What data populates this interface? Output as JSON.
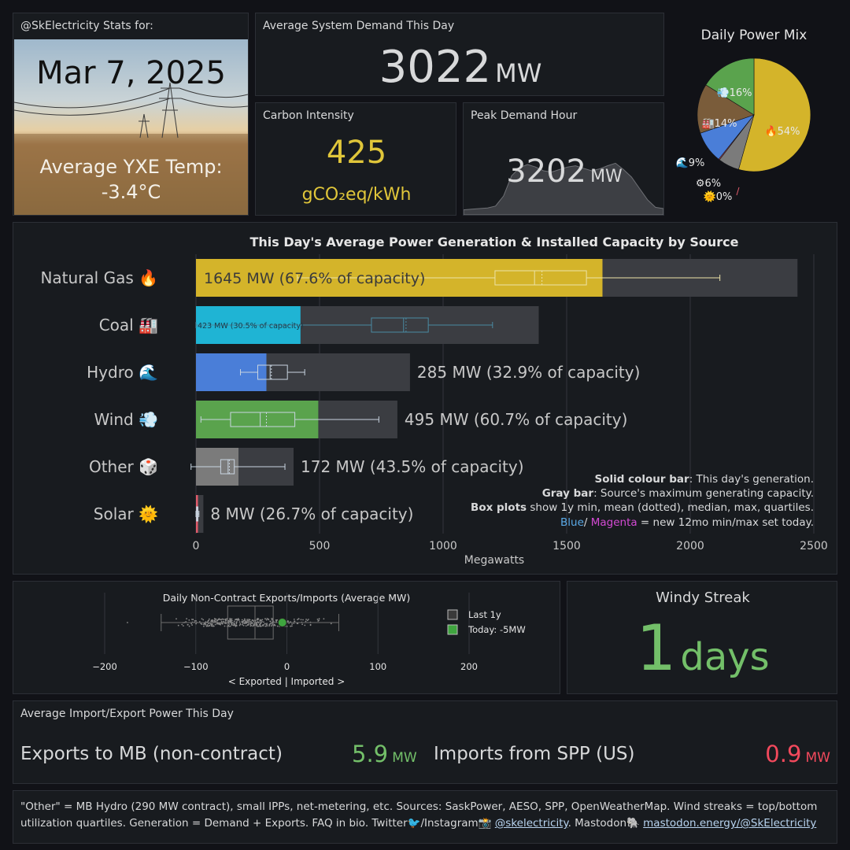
{
  "stats_panel": {
    "title": "@SkElectricity Stats for:",
    "date": "Mar 7, 2025",
    "temp_label": "Average YXE Temp:",
    "temp_value": "-3.4°C"
  },
  "demand_panel": {
    "title": "Average System Demand This Day",
    "value": "3022",
    "unit": "MW"
  },
  "carbon_panel": {
    "title": "Carbon Intensity",
    "value": "425",
    "unit": "gCO₂eq/kWh"
  },
  "peak_panel": {
    "title": "Peak Demand Hour",
    "value": "3202",
    "unit": "MW"
  },
  "windy_panel": {
    "title": "Windy Streak",
    "value": "1",
    "unit": "days"
  },
  "importexport_panel": {
    "title": "Average Import/Export Power This Day",
    "export_label": "Exports to MB (non-contract)",
    "export_value": "5.9",
    "export_unit": "MW",
    "import_label": "Imports from SPP (US)",
    "import_value": "0.9",
    "import_unit": "MW"
  },
  "footer": {
    "text1": "\"Other\" = MB Hydro (290 MW contract), small IPPs, net-metering, etc. Sources: SaskPower, AESO, SPP, OpenWeatherMap. Wind streaks = top/bottom",
    "text2": "utilization quartiles. Generation = Demand + Exports. FAQ in bio. Twitter🐦/Instagram📸 ",
    "link1": "@skelectricity",
    "text3": ". Mastodon🐘 ",
    "link2": "mastodon.energy/@SkElectricity"
  },
  "colors": {
    "gas": "#d4b42a",
    "coal": "#1fb4d4",
    "hydro": "#4a7ed8",
    "wind": "#5aa34d",
    "other": "#7b7b7b",
    "solar": "#e05a6a",
    "capacity": "#3b3d42",
    "export_green": "#73bf69",
    "import_red": "#f2495c",
    "carbon_yellow": "#e0c63a"
  },
  "chart_data": [
    {
      "type": "pie",
      "title": "Daily Power Mix",
      "labels": [
        "🔥54%",
        "⚙6%",
        "🌞0%",
        "🌊9%",
        "🏭14%",
        "💨16%"
      ],
      "slices": [
        {
          "name": "Natural Gas",
          "value": 54,
          "color": "#d4b42a"
        },
        {
          "name": "Other",
          "value": 6,
          "color": "#7b7b7b"
        },
        {
          "name": "Solar",
          "value": 0.3,
          "color": "#e05a6a"
        },
        {
          "name": "Hydro",
          "value": 9,
          "color": "#4a7ed8"
        },
        {
          "name": "Coal",
          "value": 14,
          "color": "#7a5c3a"
        },
        {
          "name": "Wind",
          "value": 16,
          "color": "#5aa34d"
        }
      ]
    },
    {
      "type": "area",
      "title": "Peak Demand Hour",
      "values": [
        0.08,
        0.09,
        0.1,
        0.11,
        0.14,
        0.3,
        0.62,
        0.75,
        0.8,
        0.76,
        0.7,
        0.68,
        0.72,
        0.76,
        0.78,
        0.74,
        0.7,
        0.73,
        0.78,
        0.82,
        0.72,
        0.6,
        0.42,
        0.24,
        0.12,
        0.1
      ]
    },
    {
      "type": "bar",
      "title": "This Day's Average Power Generation & Installed Capacity by Source",
      "xlabel": "Megawatts",
      "xlim": [
        0,
        2500
      ],
      "xticks": [
        "0",
        "500",
        "1000",
        "1500",
        "2000",
        "2500"
      ],
      "categories": [
        "Natural Gas 🔥",
        "Coal 🏭",
        "Hydro 🌊",
        "Wind 💨",
        "Other 🎲",
        "Solar 🌞"
      ],
      "generation": [
        1645,
        423,
        285,
        495,
        172,
        8
      ],
      "capacity": [
        2434,
        1387,
        866,
        815,
        395,
        30
      ],
      "labels": [
        "1645 MW (67.6% of capacity)",
        "423 MW (30.5% of capacity)",
        "285 MW (32.9% of capacity)",
        "495 MW (60.7% of capacity)",
        "172 MW (43.5% of capacity)",
        "8 MW (26.7% of capacity)"
      ],
      "boxplots": [
        {
          "min": 410,
          "q1": 1210,
          "median": 1370,
          "mean": 1400,
          "q3": 1580,
          "max": 2120
        },
        {
          "min": 0,
          "q1": 710,
          "median": 840,
          "mean": 850,
          "q3": 940,
          "max": 1200
        },
        {
          "min": 180,
          "q1": 250,
          "median": 300,
          "mean": 305,
          "q3": 370,
          "max": 440
        },
        {
          "min": 20,
          "q1": 140,
          "median": 260,
          "mean": 285,
          "q3": 400,
          "max": 740
        },
        {
          "min": -20,
          "q1": 100,
          "median": 130,
          "mean": 135,
          "q3": 155,
          "max": 360
        },
        {
          "min": 0,
          "q1": 2,
          "median": 5,
          "mean": 6,
          "q3": 8,
          "max": 12
        }
      ],
      "legend": {
        "line1_bold": "Solid colour bar",
        "line1": ": This day's generation.",
        "line2_bold": "Gray bar",
        "line2": ": Source's maximum generating capacity.",
        "line3_bold": "Box plots",
        "line3": " show 1y min, mean (dotted), median, max, quartiles.",
        "line4_blue": "Blue",
        "line4_sep": "/ ",
        "line4_magenta": "Magenta",
        "line4": " = new 12mo min/max set today."
      }
    },
    {
      "type": "scatter",
      "title": "Daily Non-Contract Exports/Imports (Average MW)",
      "xlabel": "< Exported | Imported >",
      "xlim": [
        -230,
        260
      ],
      "xticks": [
        "−200",
        "−100",
        "0",
        "100",
        "200"
      ],
      "box": {
        "min": -138,
        "q1": -65,
        "median": -35,
        "q3": -15,
        "max": 57
      },
      "today": -5,
      "legend": [
        "Last 1y",
        "Today: -5MW"
      ]
    }
  ]
}
